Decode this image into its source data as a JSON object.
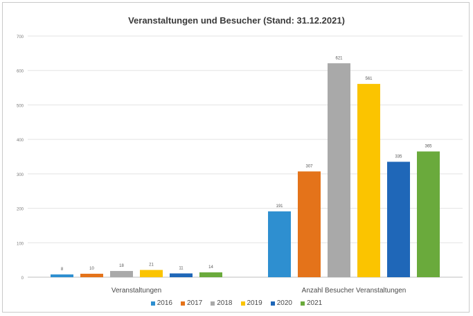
{
  "chart_data": {
    "type": "bar",
    "title": "Veranstaltungen und Besucher (Stand: 31.12.2021)",
    "xlabel": "",
    "ylabel": "",
    "ylim": [
      0,
      700
    ],
    "yticks": [
      0,
      100,
      200,
      300,
      400,
      500,
      600,
      700
    ],
    "grid": true,
    "legend_position": "bottom",
    "categories": [
      "Veranstaltungen",
      "Anzahl Besucher Veranstaltungen"
    ],
    "series": [
      {
        "name": "2016",
        "color": "#2e8fd0",
        "values": [
          8,
          191
        ],
        "labels": [
          "8",
          "191"
        ]
      },
      {
        "name": "2017",
        "color": "#e4731a",
        "values": [
          10,
          307
        ],
        "labels": [
          "10",
          "307"
        ]
      },
      {
        "name": "2018",
        "color": "#a9a9a9",
        "values": [
          18,
          621
        ],
        "labels": [
          "18",
          "621"
        ]
      },
      {
        "name": "2019",
        "color": "#fbc400",
        "values": [
          21,
          561
        ],
        "labels": [
          "21",
          "561"
        ]
      },
      {
        "name": "2020",
        "color": "#1f67b8",
        "values": [
          11,
          335
        ],
        "labels": [
          "11",
          "335"
        ]
      },
      {
        "name": "2021",
        "color": "#6aaa3c",
        "values": [
          14,
          365
        ],
        "labels": [
          "14",
          "365"
        ]
      }
    ]
  }
}
